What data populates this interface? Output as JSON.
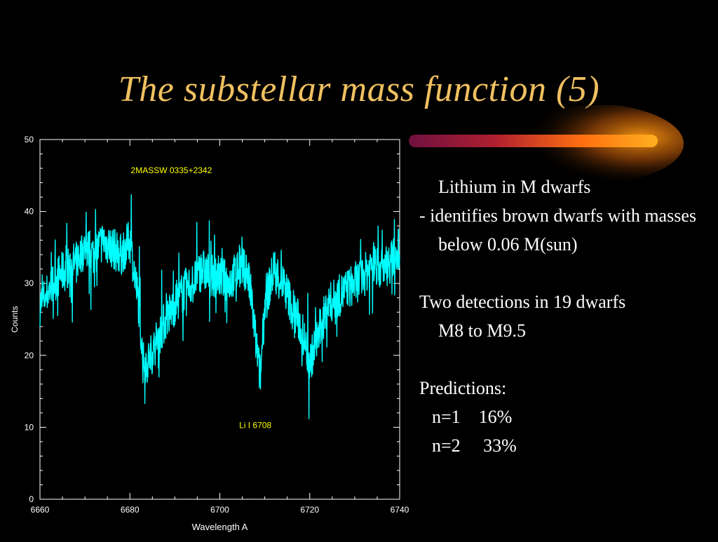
{
  "slide": {
    "title": "The substellar mass function (5)",
    "title_color": "#f0c060",
    "background": "#000000"
  },
  "bullets": {
    "item1_line1": "Lithium in M dwarfs",
    "item2": "- identifies brown dwarfs with masses below 0.06 M(sun)",
    "item3_line1": "Two detections in 19 dwarfs",
    "item3_line2": "M8 to M9.5",
    "predictions_label": "Predictions:",
    "prediction1": "n=1    16%",
    "prediction2": "n=2     33%"
  },
  "chart_data": {
    "type": "line",
    "xlabel": "Wavelength A",
    "ylabel": "Counts",
    "xlim": [
      6660,
      6740
    ],
    "ylim": [
      0,
      50
    ],
    "xticks": [
      "6660",
      "6680",
      "6700",
      "6720",
      "6740"
    ],
    "yticks": [
      "0",
      "10",
      "20",
      "30",
      "40",
      "50"
    ],
    "annotations": [
      "2MASSW 0335+2342",
      "Li I 6708"
    ],
    "annotation_color": "#ffff00",
    "series_color": "#00ffff",
    "grid": false,
    "series": [
      {
        "x": [
          6660,
          6662,
          6664,
          6666,
          6668,
          6670,
          6672,
          6674,
          6676,
          6678,
          6680,
          6682,
          6683,
          6684,
          6686,
          6688,
          6690,
          6692,
          6694,
          6696,
          6698,
          6700,
          6702,
          6704,
          6706,
          6707,
          6708,
          6709,
          6710,
          6712,
          6714,
          6716,
          6718,
          6720,
          6722,
          6724,
          6726,
          6728,
          6730,
          6732,
          6734,
          6736,
          6738,
          6740
        ],
        "y": [
          27,
          29,
          31,
          32,
          33,
          35,
          34,
          36,
          35,
          34,
          36,
          27,
          19,
          19,
          22,
          25,
          27,
          29,
          30,
          32,
          31,
          31,
          30,
          32,
          32,
          28,
          22,
          17,
          27,
          32,
          30,
          27,
          24,
          19,
          23,
          27,
          28,
          29,
          30,
          31,
          33,
          32,
          33,
          35
        ]
      }
    ]
  }
}
